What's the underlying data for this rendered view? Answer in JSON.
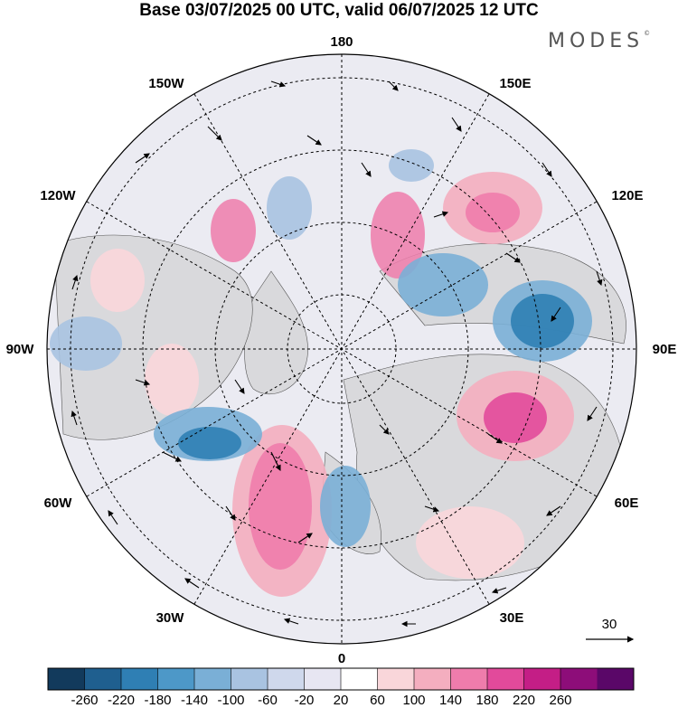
{
  "title": "Base 03/07/2025 00 UTC, valid 06/07/2025 12 UTC",
  "brand": "MODES",
  "brand_mark": "©",
  "longitude_labels": [
    "180",
    "150E",
    "120E",
    "90E",
    "60E",
    "30E",
    "0",
    "30W",
    "60W",
    "90W",
    "120W",
    "150W"
  ],
  "wind_reference": "30",
  "colorbar": {
    "ticks": [
      "-260",
      "-220",
      "-180",
      "-140",
      "-100",
      "-60",
      "-20",
      "20",
      "60",
      "100",
      "140",
      "180",
      "220",
      "260"
    ],
    "colors": [
      "#123a5c",
      "#1f5f8f",
      "#2f7fb4",
      "#4d98c8",
      "#7aafd6",
      "#a9c3e1",
      "#cfd8ec",
      "#e7e6f2",
      "#ffffff",
      "#f9d6da",
      "#f4aebf",
      "#ef7cac",
      "#e24a9b",
      "#c41e86",
      "#8d0d79",
      "#5a0768"
    ]
  },
  "colors": {
    "land": "#dcdcdc",
    "ocean_neutral": "#ebebf2",
    "positive_anomaly": "#e24a9b",
    "negative_anomaly": "#2f7fb4"
  }
}
